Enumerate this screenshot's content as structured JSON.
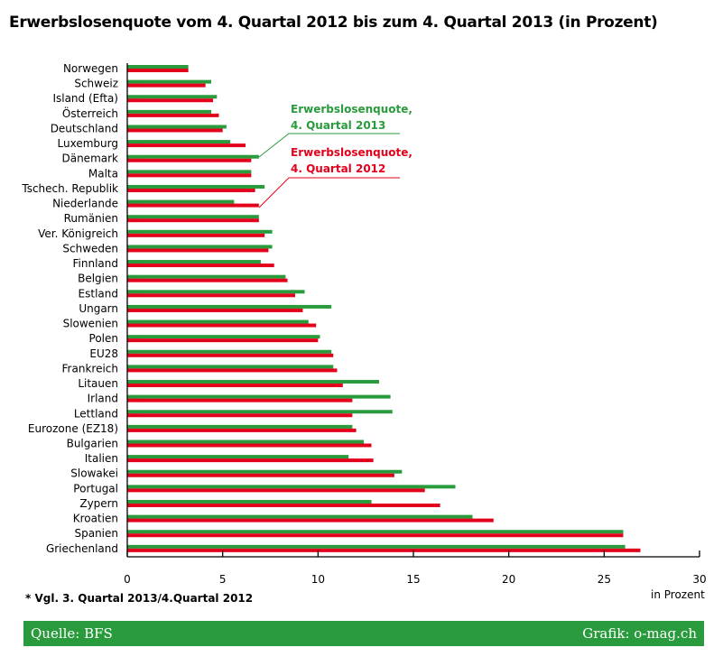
{
  "title": "Erwerbslosenquote vom 4. Quartal 2012 bis zum 4. Quartal 2013 (in Prozent)",
  "footnote": "* Vgl. 3. Quartal 2013/4.Quartal 2012",
  "footer": {
    "source": "Quelle: BFS",
    "credit": "Grafik: o-mag.ch"
  },
  "colors": {
    "green": "#2a9b3c",
    "red": "#e3001b",
    "footer": "#2a9b3c"
  },
  "chart_data": {
    "type": "bar",
    "orientation": "horizontal",
    "title": "Erwerbslosenquote vom 4. Quartal 2012 bis zum 4. Quartal 2013 (in Prozent)",
    "xlabel": "in Prozent",
    "xlim": [
      0,
      30
    ],
    "xticks": [
      0,
      5,
      10,
      15,
      20,
      25,
      30
    ],
    "grid": false,
    "legend_position": "upper-middle",
    "categories": [
      "Norwegen",
      "Schweiz",
      "Island (Efta)",
      "Österreich",
      "Deutschland",
      "Luxemburg",
      "Dänemark",
      "Malta",
      "Tschech. Republik",
      "Niederlande",
      "Rumänien",
      "Ver. Königreich",
      "Schweden",
      "Finnland",
      "Belgien",
      "Estland",
      "Ungarn",
      "Slowenien",
      "Polen",
      "EU28",
      "Frankreich",
      "Litauen",
      "Irland",
      "Lettland",
      "Eurozone (EZ18)",
      "Bulgarien",
      "Italien",
      "Slowakei",
      "Portugal",
      "Zypern",
      "Kroatien",
      "Spanien",
      "Griechenland"
    ],
    "series": [
      {
        "name": "Erwerbslosenquote, 4. Quartal 2013",
        "color": "#2a9b3c",
        "values": [
          3.2,
          4.4,
          4.7,
          4.4,
          5.2,
          5.4,
          6.9,
          6.5,
          7.2,
          5.6,
          6.9,
          7.6,
          7.6,
          7.0,
          8.3,
          9.3,
          10.7,
          9.5,
          10.1,
          10.7,
          10.8,
          13.2,
          13.8,
          13.9,
          11.8,
          12.4,
          11.6,
          14.4,
          17.2,
          12.8,
          18.1,
          26.0,
          26.1
        ]
      },
      {
        "name": "Erwerbslosenquote, 4. Quartal 2012",
        "color": "#e3001b",
        "values": [
          3.2,
          4.1,
          4.5,
          4.8,
          5.0,
          6.2,
          6.5,
          6.5,
          6.7,
          6.9,
          6.9,
          7.2,
          7.4,
          7.7,
          8.4,
          8.8,
          9.2,
          9.9,
          10.0,
          10.8,
          11.0,
          11.3,
          11.8,
          11.8,
          12.0,
          12.8,
          12.9,
          14.0,
          15.6,
          16.4,
          19.2,
          26.0,
          26.9
        ]
      }
    ],
    "legend": [
      {
        "line1": "Erwerbslosenquote,",
        "line2": "4. Quartal 2013",
        "color": "#2a9b3c"
      },
      {
        "line1": "Erwerbslosenquote,",
        "line2": "4. Quartal 2012",
        "color": "#e3001b"
      }
    ]
  }
}
